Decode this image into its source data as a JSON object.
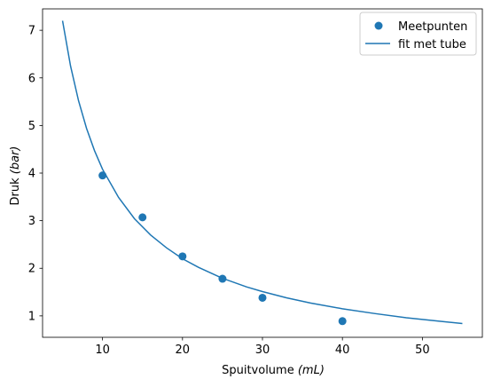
{
  "chart_data": {
    "type": "scatter",
    "xlabel_main": "Spuitvolume ",
    "xlabel_unit": "(mL)",
    "ylabel_main": "Druk ",
    "ylabel_unit": "(bar)",
    "xlim": [
      2.5,
      57.5
    ],
    "ylim": [
      0.55,
      7.45
    ],
    "xticks": [
      10,
      20,
      30,
      40,
      50
    ],
    "yticks": [
      1,
      2,
      3,
      4,
      5,
      6,
      7
    ],
    "legend_position": "top-right",
    "colors": {
      "series": "#1f77b4"
    },
    "series": [
      {
        "name": "Meetpunten",
        "kind": "scatter",
        "x": [
          10,
          15,
          20,
          25,
          30,
          40
        ],
        "y": [
          3.95,
          3.07,
          2.25,
          1.78,
          1.38,
          0.89
        ]
      },
      {
        "name": "fit met tube",
        "kind": "line",
        "x": [
          5,
          6,
          7,
          8,
          9,
          10,
          12,
          14,
          16,
          18,
          20,
          22,
          25,
          28,
          30,
          33,
          36,
          40,
          44,
          48,
          52,
          55
        ],
        "y": [
          7.2,
          6.25,
          5.52,
          4.94,
          4.47,
          4.08,
          3.49,
          3.04,
          2.7,
          2.43,
          2.2,
          2.02,
          1.79,
          1.61,
          1.51,
          1.38,
          1.27,
          1.15,
          1.05,
          0.96,
          0.89,
          0.84
        ]
      }
    ]
  }
}
